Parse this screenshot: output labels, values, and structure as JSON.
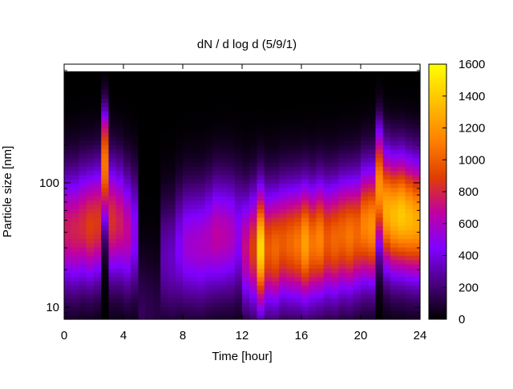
{
  "chart_data": {
    "type": "heatmap",
    "title": "dN / d log d (5/9/1)",
    "xlabel": "Time [hour]",
    "ylabel": "Particle size [nm]",
    "x_ticks": [
      "0",
      "4",
      "8",
      "12",
      "16",
      "20",
      "24"
    ],
    "xlim": [
      0,
      24
    ],
    "y_scale": "log",
    "y_ticks": [
      "10",
      "100"
    ],
    "ylim": [
      8,
      900
    ],
    "colorbar": {
      "range": [
        0,
        1600
      ],
      "ticks": [
        "0",
        "200",
        "400",
        "600",
        "800",
        "1000",
        "1200",
        "1400",
        "1600"
      ],
      "colormap": "gnuplot",
      "colormap_stops": [
        "#000000",
        "#4a0080",
        "#8000ff",
        "#c000a0",
        "#e04000",
        "#ff8000",
        "#ffc000",
        "#ffff00"
      ]
    },
    "grid": false,
    "legend": "none",
    "x_values_hours": [
      0,
      0.5,
      1,
      1.5,
      2,
      2.5,
      3,
      3.5,
      4,
      4.5,
      5,
      5.5,
      6,
      6.5,
      7,
      7.5,
      8,
      8.5,
      9,
      9.5,
      10,
      10.5,
      11,
      11.5,
      12,
      12.5,
      13,
      13.5,
      14,
      14.5,
      15,
      15.5,
      16,
      16.5,
      17,
      17.5,
      18,
      18.5,
      19,
      19.5,
      20,
      20.5,
      21,
      21.5,
      22,
      22.5,
      23,
      23.5
    ],
    "peak_diameter_nm": [
      42,
      42,
      45,
      45,
      48,
      140,
      50,
      48,
      42,
      40,
      9,
      9,
      9,
      25,
      25,
      30,
      32,
      32,
      32,
      35,
      38,
      38,
      38,
      38,
      30,
      30,
      30,
      30,
      30,
      33,
      33,
      33,
      33,
      33,
      35,
      35,
      35,
      38,
      38,
      40,
      45,
      45,
      90,
      60,
      55,
      55,
      52,
      50
    ],
    "peak_value": [
      780,
      800,
      830,
      900,
      880,
      1100,
      850,
      780,
      700,
      500,
      160,
      140,
      120,
      320,
      350,
      450,
      560,
      580,
      600,
      620,
      680,
      660,
      620,
      500,
      720,
      900,
      1450,
      1000,
      1050,
      1000,
      1050,
      1100,
      1250,
      1100,
      1150,
      1000,
      1050,
      1050,
      1100,
      1050,
      1150,
      1200,
      1200,
      1300,
      1350,
      1400,
      1350,
      1300
    ]
  }
}
